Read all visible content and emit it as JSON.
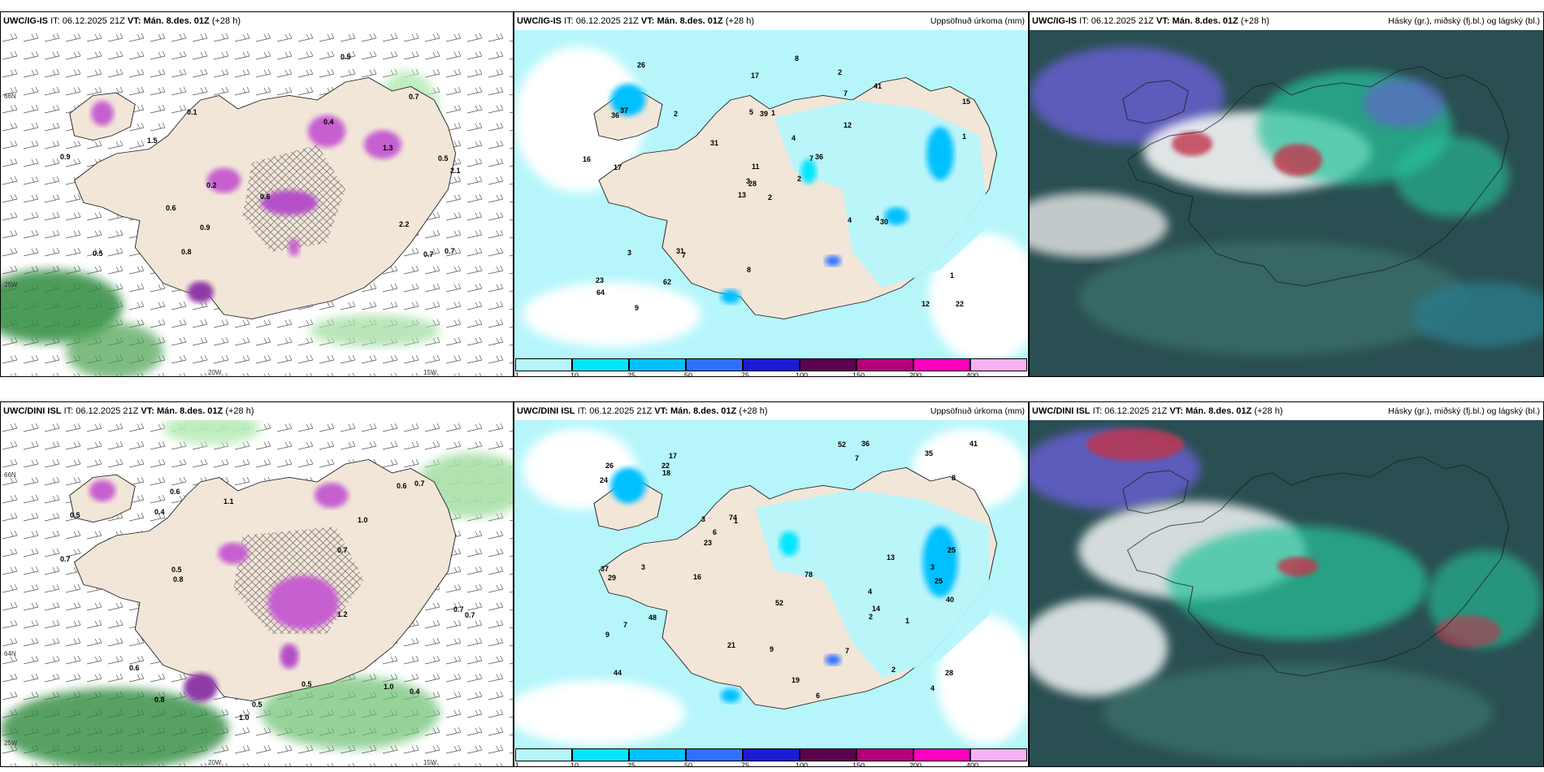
{
  "rows": [
    {
      "model": "UWC/IG-IS",
      "it_label": "IT:",
      "it_value": "06.12.2025 21Z",
      "vt_label": "VT:",
      "vt_value": "Mán. 8.des. 01Z",
      "lead": "(+28 h)",
      "precip_labels": [
        "2",
        "36",
        "28",
        "23",
        "7",
        "7",
        "2",
        "1",
        "7",
        "2",
        "26",
        "22",
        "17",
        "15",
        "13",
        "12",
        "9",
        "5",
        "4",
        "3",
        "31",
        "64",
        "62",
        "39",
        "36",
        "30",
        "37",
        "17",
        "16",
        "4",
        "1",
        "3",
        "8",
        "11",
        "2",
        "41",
        "31",
        "12",
        "1",
        "4",
        "8"
      ]
    },
    {
      "model": "UWC/DINI ISL",
      "it_label": "IT:",
      "it_value": "06.12.2025 21Z",
      "vt_label": "VT:",
      "vt_value": "Mán. 8.des. 01Z",
      "lead": "(+28 h)",
      "precip_labels": [
        "4",
        "25",
        "44",
        "17",
        "1",
        "2",
        "9",
        "7",
        "3",
        "6",
        "24",
        "37",
        "26",
        "28",
        "21",
        "25",
        "52",
        "78",
        "74",
        "48",
        "41",
        "35",
        "23",
        "40",
        "52",
        "22",
        "14",
        "29",
        "18",
        "13",
        "19",
        "7",
        "6",
        "16",
        "3",
        "1",
        "2",
        "3",
        "9",
        "7",
        "8",
        "36",
        "4"
      ]
    }
  ],
  "wind_panel": {
    "row1_values": [
      "0.1",
      "0.5",
      "0.4",
      "2.1",
      "0.2",
      "0.7",
      "0.9",
      "0.5",
      "0.7",
      "0.7",
      "1.5",
      "2.2",
      "1.3",
      "0.8",
      "0.5",
      "0.6",
      "0.6",
      "0.9"
    ],
    "row2_values": [
      "0.5",
      "0.4",
      "0.7",
      "0.5",
      "0.6",
      "1.0",
      "1.2",
      "0.8",
      "0.7",
      "0.7",
      "0.7",
      "0.6",
      "1.0",
      "0.6",
      "0.7",
      "0.8",
      "0.5",
      "1.1",
      "0.4",
      "0.5",
      "1.0"
    ]
  },
  "precip_title": "Uppsöfnuð úrkoma (mm)",
  "cloud_title": "Hásky (gr.), miðský (fj.bl.) og lágský (bl.)",
  "colorbar": {
    "ticks": [
      "1",
      "10",
      "25",
      "50",
      "75",
      "100",
      "150",
      "200",
      "400"
    ],
    "colors": [
      "#b6f6fb",
      "#00e6ff",
      "#00c0ff",
      "#2f70ff",
      "#1b1bd6",
      "#5c0050",
      "#b4007a",
      "#ff00c0",
      "#f8b0f5"
    ]
  },
  "lat_labels": {
    "n66": "66N",
    "n64": "64N",
    "w25": "25W",
    "w20": "20W",
    "w15": "15W"
  },
  "colors": {
    "land": "#f2e6d8",
    "precip_light": "#b6f6fb",
    "cloud_dark": "#2a4f52",
    "cloud_green": "#25c39a",
    "cloud_purple": "#6a5fd6",
    "cloud_red": "#c2344b"
  }
}
